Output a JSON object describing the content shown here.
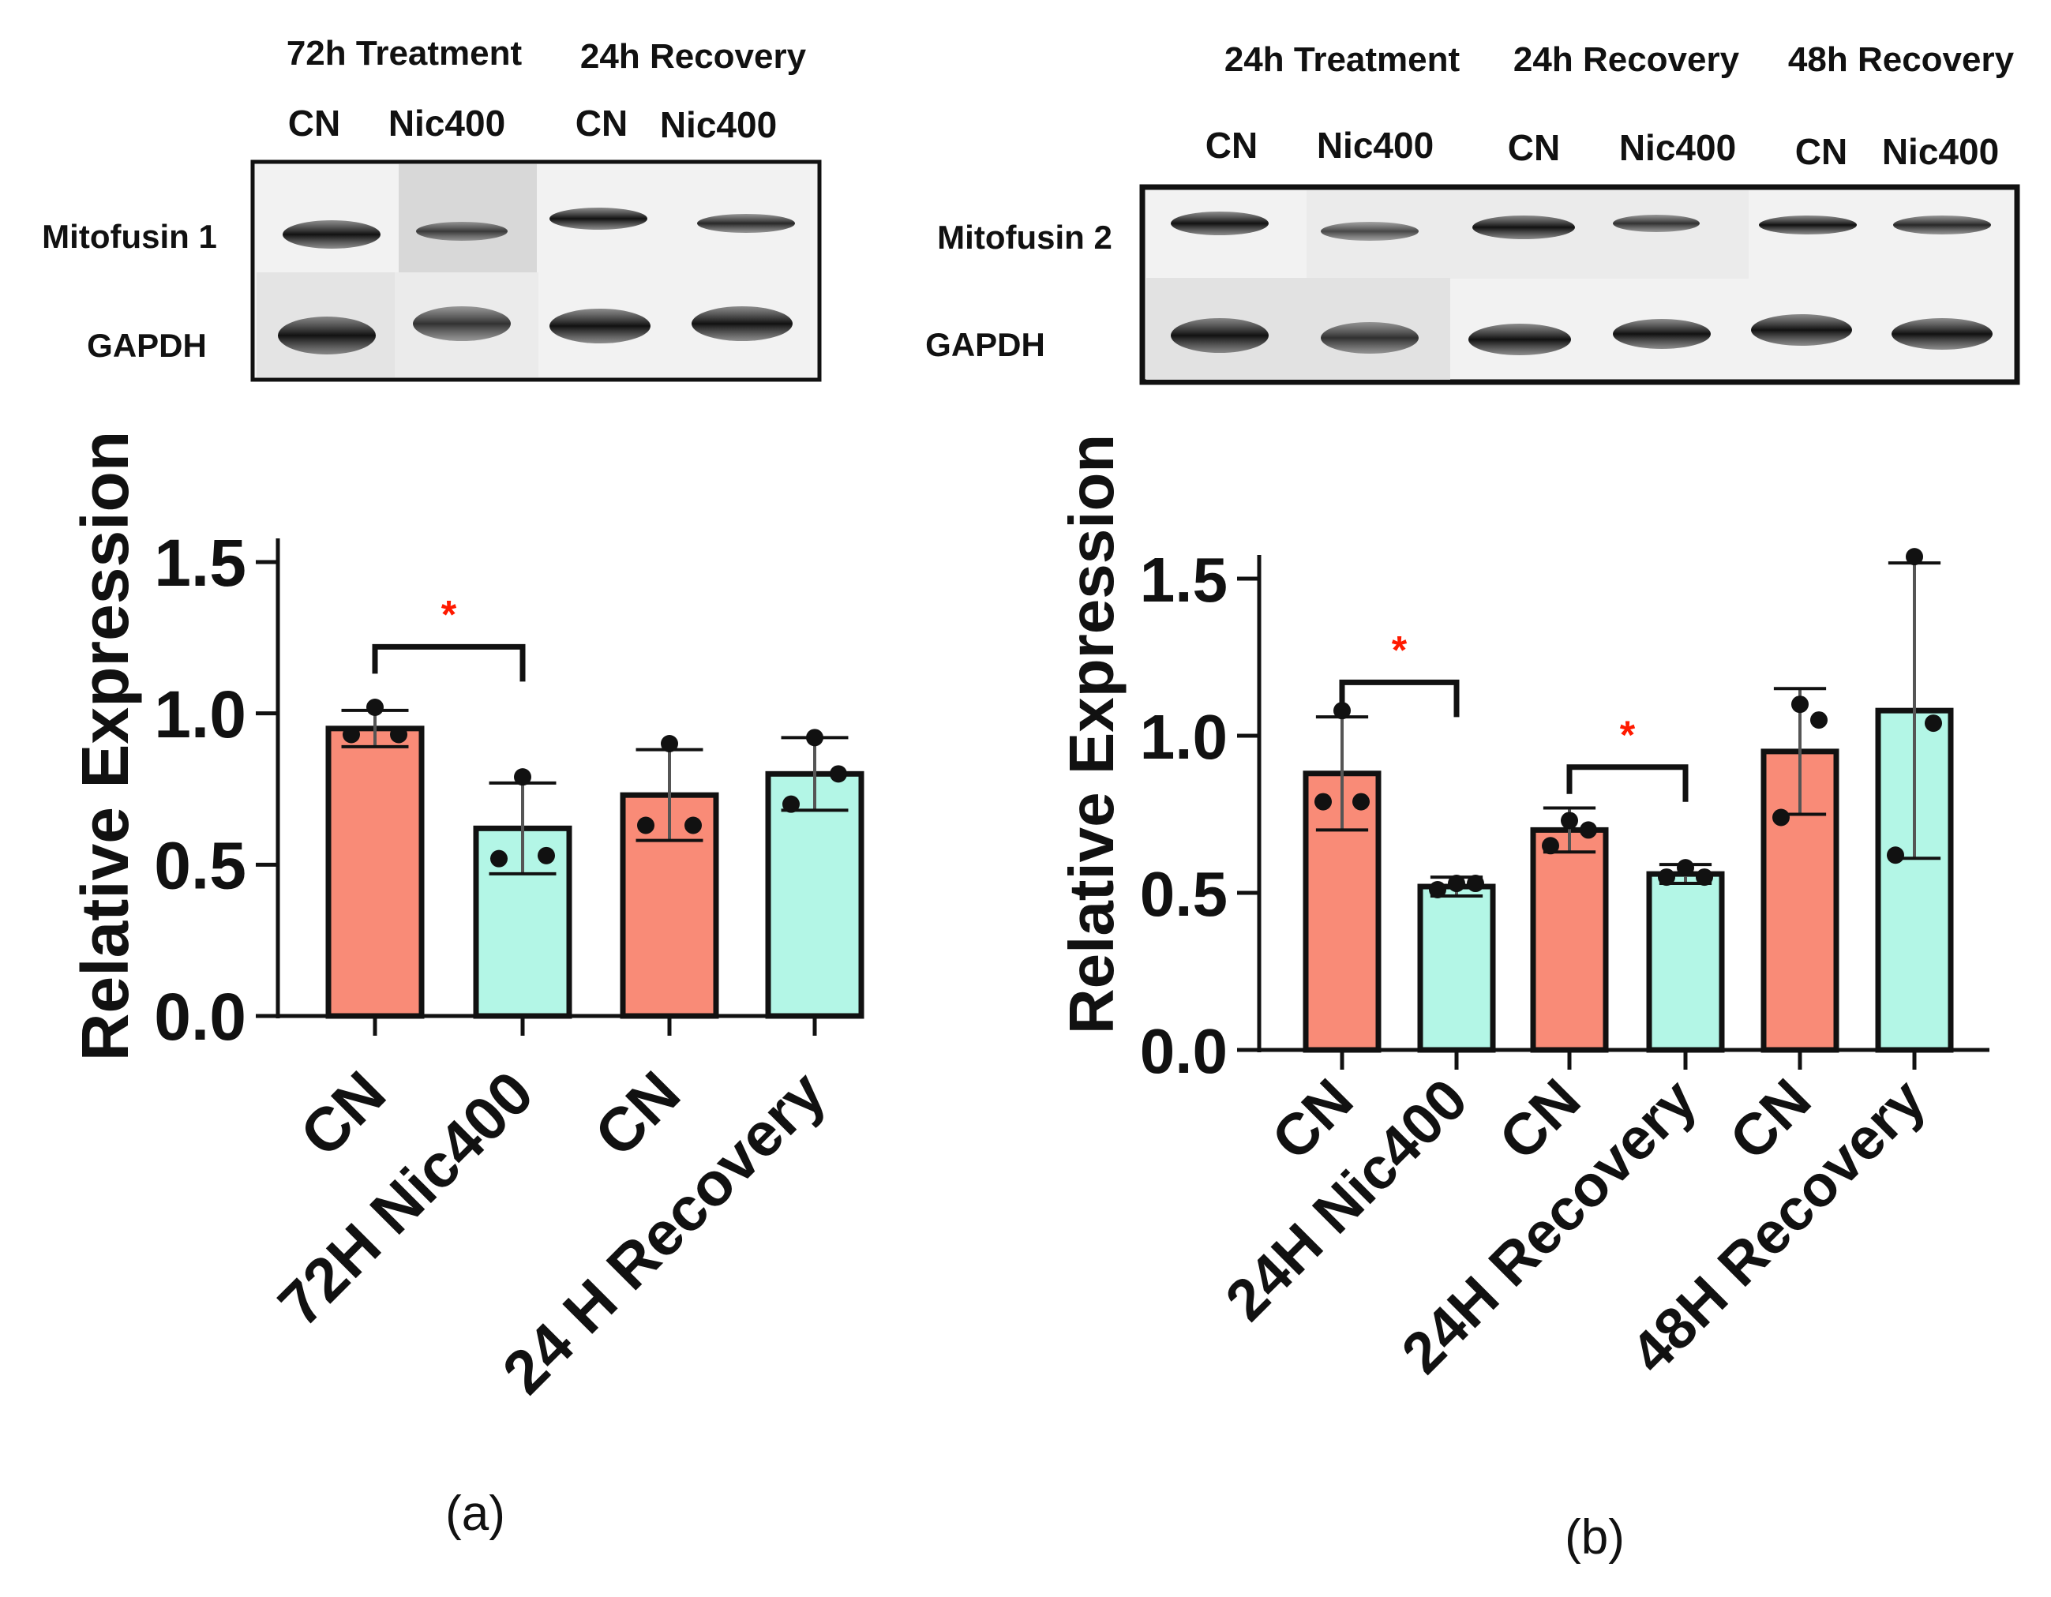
{
  "figure": {
    "panel_a_caption": "(a)",
    "panel_b_caption": "(b)"
  },
  "blot_a": {
    "group_labels": [
      "72h Treatment",
      "24h Recovery"
    ],
    "lane_labels": [
      "CN",
      "Nic400",
      "CN",
      "Nic400"
    ],
    "row_labels": [
      "Mitofusin 1",
      "GAPDH"
    ]
  },
  "blot_b": {
    "group_labels": [
      "24h Treatment",
      "24h Recovery",
      "48h Recovery"
    ],
    "lane_labels": [
      "CN",
      "Nic400",
      "CN",
      "Nic400",
      "CN",
      "Nic400"
    ],
    "row_labels": [
      "Mitofusin 2",
      "GAPDH"
    ]
  },
  "colors": {
    "control": "#F98B77",
    "treated": "#B3F6E6",
    "significance": "#ff1a00",
    "ink": "#111111"
  },
  "chart_data": [
    {
      "type": "bar",
      "panel": "a",
      "title": "",
      "xlabel": "",
      "ylabel": "Relative Expression",
      "ylim": [
        0,
        1.5
      ],
      "yticks": [
        "0.0",
        "0.5",
        "1.0",
        "1.5"
      ],
      "categories": [
        "CN",
        "72H Nic400",
        "CN",
        "24 H Recovery"
      ],
      "values": [
        0.95,
        0.62,
        0.73,
        0.8
      ],
      "error": [
        0.06,
        0.15,
        0.15,
        0.12
      ],
      "points": [
        [
          0.93,
          0.93,
          1.02
        ],
        [
          0.52,
          0.53,
          0.79
        ],
        [
          0.63,
          0.63,
          0.9
        ],
        [
          0.7,
          0.8,
          0.92
        ]
      ],
      "bar_color_keys": [
        "control",
        "treated",
        "control",
        "treated"
      ],
      "significance": [
        {
          "from": 0,
          "to": 1,
          "label": "*"
        }
      ]
    },
    {
      "type": "bar",
      "panel": "b",
      "title": "",
      "xlabel": "",
      "ylabel": "Relative Expression",
      "ylim": [
        0,
        1.5
      ],
      "yticks": [
        "0.0",
        "0.5",
        "1.0",
        "1.5"
      ],
      "categories": [
        "CN",
        "24H Nic400",
        "CN",
        "24H Recovery",
        "CN",
        "48H Recovery"
      ],
      "values": [
        0.88,
        0.52,
        0.7,
        0.56,
        0.95,
        1.08
      ],
      "error": [
        0.18,
        0.03,
        0.07,
        0.03,
        0.2,
        0.47
      ],
      "points": [
        [
          0.79,
          0.79,
          1.08
        ],
        [
          0.51,
          0.53,
          0.53
        ],
        [
          0.65,
          0.7,
          0.73
        ],
        [
          0.55,
          0.55,
          0.58
        ],
        [
          0.74,
          1.05,
          1.1
        ],
        [
          0.62,
          1.04,
          1.57
        ]
      ],
      "bar_color_keys": [
        "control",
        "treated",
        "control",
        "treated",
        "control",
        "treated"
      ],
      "significance": [
        {
          "from": 0,
          "to": 1,
          "label": "*"
        },
        {
          "from": 2,
          "to": 3,
          "label": "*"
        }
      ]
    }
  ]
}
